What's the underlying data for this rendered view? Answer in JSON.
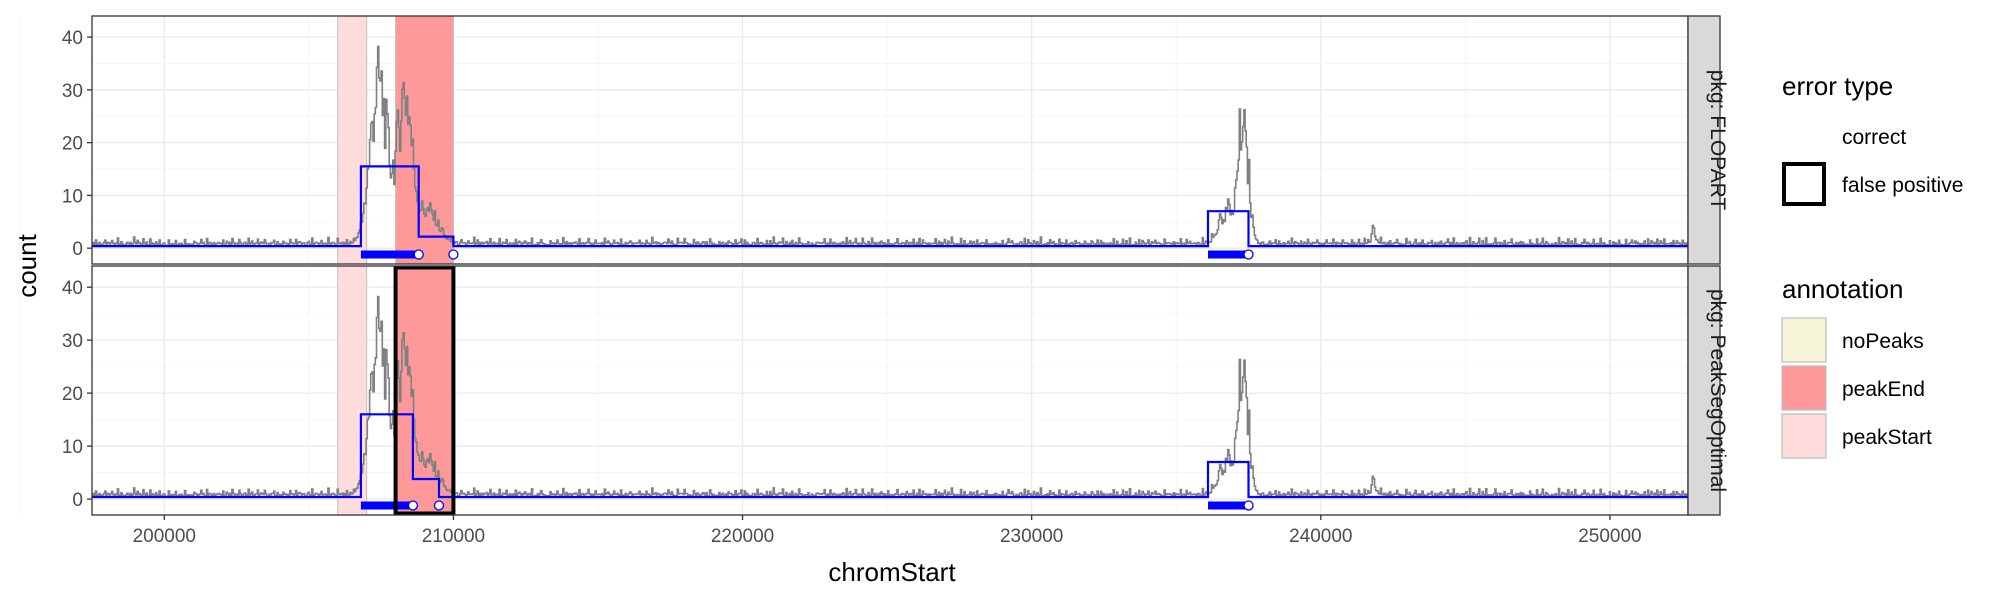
{
  "chart_data": {
    "type": "line",
    "xlabel": "chromStart",
    "ylabel": "count",
    "xlim": [
      197500,
      252700
    ],
    "ylim": [
      -3,
      44
    ],
    "x_ticks": [
      200000,
      210000,
      220000,
      230000,
      240000,
      250000
    ],
    "x_tick_labels": [
      "200000",
      "210000",
      "220000",
      "230000",
      "240000",
      "250000"
    ],
    "y_ticks": [
      0,
      10,
      20,
      30,
      40
    ],
    "y_tick_labels": [
      "0",
      "10",
      "20",
      "30",
      "40"
    ],
    "grid": true,
    "legend_position": "right",
    "colors": {
      "coverage": "#808080",
      "segments": "#0000ff",
      "noPeaks": "#f6f4d9",
      "peakEnd": "#ff9999",
      "peakStart": "#ffdddd"
    },
    "annotations": [
      {
        "label": "peakStart",
        "start": 206000,
        "end": 207000
      },
      {
        "label": "peakEnd",
        "start": 208000,
        "end": 210000
      }
    ],
    "coverage_profile": {
      "baseline": 0.8,
      "bumps": [
        {
          "center": 207400,
          "width": 420,
          "height": 30
        },
        {
          "center": 208300,
          "width": 350,
          "height": 28
        },
        {
          "center": 209100,
          "width": 500,
          "height": 6
        },
        {
          "center": 237300,
          "width": 250,
          "height": 24
        },
        {
          "center": 236700,
          "width": 350,
          "height": 6
        },
        {
          "center": 241800,
          "width": 80,
          "height": 3
        }
      ]
    },
    "panels": [
      {
        "strip": "pkg: FLOPART",
        "segments": [
          {
            "start": 197500,
            "end": 206800,
            "mean": 0.4
          },
          {
            "start": 206800,
            "end": 208800,
            "mean": 15.5
          },
          {
            "start": 208800,
            "end": 210000,
            "mean": 2.2
          },
          {
            "start": 210000,
            "end": 236100,
            "mean": 0.4
          },
          {
            "start": 236100,
            "end": 237500,
            "mean": 7
          },
          {
            "start": 237500,
            "end": 252700,
            "mean": 0.4
          }
        ],
        "peaks": [
          {
            "start": 206800,
            "end": 208800
          },
          {
            "start": 236100,
            "end": 237500
          }
        ],
        "errors": []
      },
      {
        "strip": "pkg: PeakSegOptimal",
        "segments": [
          {
            "start": 197500,
            "end": 206800,
            "mean": 0.4
          },
          {
            "start": 206800,
            "end": 208600,
            "mean": 16
          },
          {
            "start": 208600,
            "end": 209500,
            "mean": 3.8
          },
          {
            "start": 209500,
            "end": 236100,
            "mean": 0.4
          },
          {
            "start": 236100,
            "end": 237500,
            "mean": 7
          },
          {
            "start": 237500,
            "end": 252700,
            "mean": 0.4
          }
        ],
        "peaks": [
          {
            "start": 206800,
            "end": 208600
          },
          {
            "start": 236100,
            "end": 237500
          }
        ],
        "errors": [
          {
            "type": "false positive",
            "start": 208000,
            "end": 210000
          }
        ]
      }
    ],
    "legend": {
      "error_type": {
        "title": "error type",
        "items": [
          "correct",
          "false positive"
        ]
      },
      "annotation": {
        "title": "annotation",
        "items": [
          "noPeaks",
          "peakEnd",
          "peakStart"
        ]
      }
    }
  }
}
